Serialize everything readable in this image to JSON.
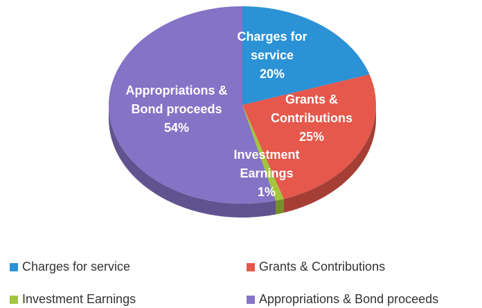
{
  "chart_data": {
    "type": "pie",
    "categories": [
      "Charges for service",
      "Grants & Contributions",
      "Investment Earnings",
      "Appropriations & Bond proceeds"
    ],
    "values": [
      20,
      25,
      1,
      54
    ],
    "value_labels": [
      "20%",
      "25%",
      "1%",
      "54%"
    ],
    "colors": [
      "#2b92d6",
      "#e5584b",
      "#a2c63c",
      "#8573c6"
    ],
    "legend": "bottom"
  }
}
